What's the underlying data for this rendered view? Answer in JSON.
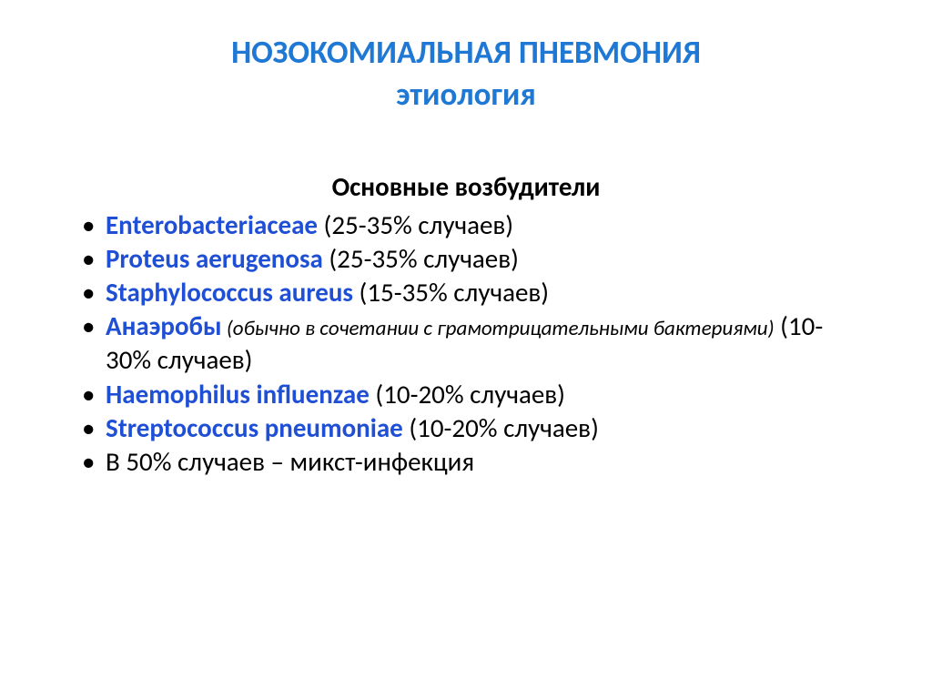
{
  "title": {
    "line1": "НОЗОКОМИАЛЬНАЯ ПНЕВМОНИЯ",
    "line2": "этиология",
    "color": "#1f78d4",
    "fontsize": 35
  },
  "subtitle": {
    "text": "Основные возбудители",
    "color": "#000000",
    "fontsize": 29
  },
  "list": {
    "bullet_color": "#000000",
    "name_color": "#1f4fd4",
    "body_color": "#000000",
    "fontsize": 29,
    "small_italic_fontsize": 23,
    "items": [
      {
        "name": "Enterobacteriaceae",
        "stat": " (25-35% случаев)"
      },
      {
        "name": "Proteus aerugenosa",
        "stat": " (25-35% случаев)"
      },
      {
        "name": "Staphylococcus aureus",
        "stat": " (15-35% случаев)"
      },
      {
        "name": "Анаэробы",
        "note": " (обычно в сочетании с грамотрицательными бактериями)",
        "stat": " (10-30% случаев)"
      },
      {
        "name": "Haemophilus influenzae",
        "stat": " (10-20% случаев)"
      },
      {
        "name": "Streptococcus pneumoniae",
        "stat": " (10-20% случаев)"
      },
      {
        "plain": "В 50% случаев – микст-инфекция"
      }
    ]
  },
  "background_color": "#ffffff"
}
